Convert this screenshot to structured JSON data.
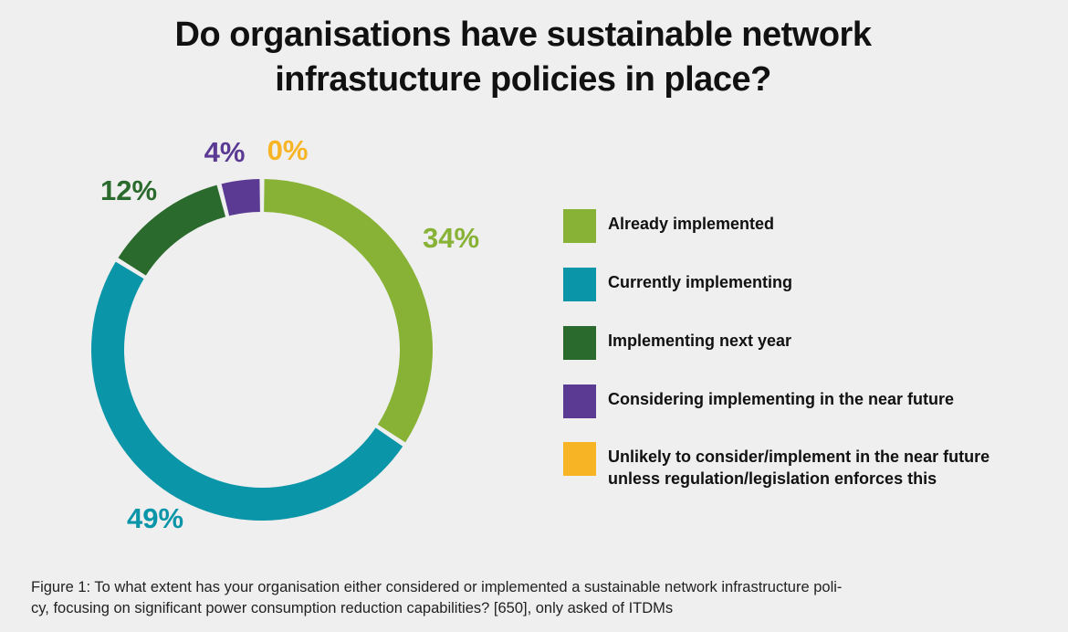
{
  "title_lines": [
    "Do organisations have sustainable network",
    "infrastucture policies in place?"
  ],
  "chart_data": {
    "type": "pie",
    "variant": "donut",
    "unit": "%",
    "slices": [
      {
        "label": "Already implemented",
        "value": 34,
        "display": "34%",
        "color": "#87b236"
      },
      {
        "label": "Currently implementing",
        "value": 49,
        "display": "49%",
        "color": "#0a95a8"
      },
      {
        "label": "Implementing next year",
        "value": 12,
        "display": "12%",
        "color": "#2b6a2d"
      },
      {
        "label": "Considering implementing in the near future",
        "value": 4,
        "display": "4%",
        "color": "#5b3a94"
      },
      {
        "label": "Unlikely to consider/implement in the near future\nunless regulation/legislation enforces this",
        "value": 0,
        "display": "0%",
        "color": "#f7b526"
      }
    ],
    "legend_position": "right"
  },
  "caption_lines": [
    "Figure 1: To what extent has your organisation either considered or implemented a sustainable network infrastructure poli-",
    "cy, focusing on significant power consumption reduction capabilities? [650], only asked of ITDMs"
  ]
}
